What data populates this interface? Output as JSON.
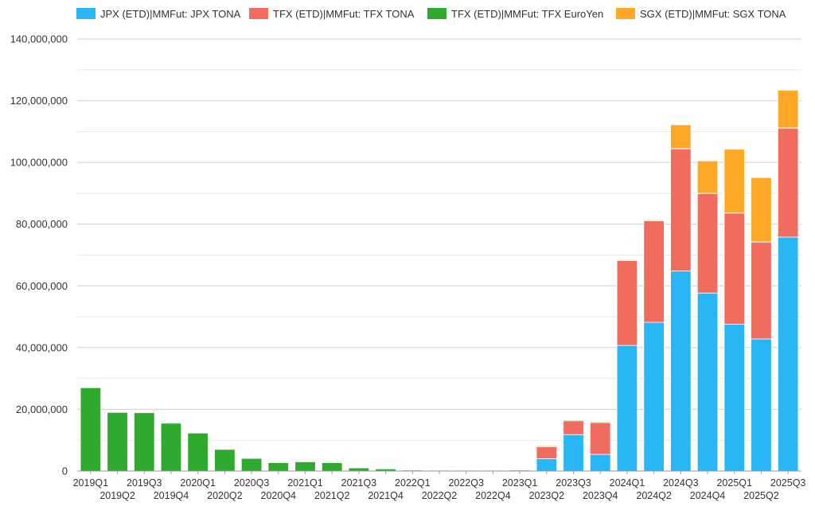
{
  "colors": {
    "jpx": "#29b6f6",
    "tfx_tona": "#ef6c5e",
    "tfx_euroyen": "#2eaa2e",
    "sgx": "#ffa726",
    "gridline": "#dddddd",
    "axis": "#999999"
  },
  "chart_data": {
    "type": "bar",
    "stacked": true,
    "legend_position": "top",
    "grid": true,
    "ylim": [
      0,
      140000000
    ],
    "y_ticks": [
      0,
      20000000,
      40000000,
      60000000,
      80000000,
      100000000,
      120000000,
      140000000
    ],
    "y_tick_labels": [
      "0",
      "20,000,000",
      "40,000,000",
      "60,000,000",
      "80,000,000",
      "100,000,000",
      "120,000,000",
      "140,000,000"
    ],
    "categories": [
      "2019Q1",
      "2019Q2",
      "2019Q3",
      "2019Q4",
      "2020Q1",
      "2020Q2",
      "2020Q3",
      "2020Q4",
      "2021Q1",
      "2021Q2",
      "2021Q3",
      "2021Q4",
      "2022Q1",
      "2022Q2",
      "2022Q3",
      "2022Q4",
      "2023Q1",
      "2023Q2",
      "2023Q3",
      "2023Q4",
      "2024Q1",
      "2024Q2",
      "2024Q3",
      "2024Q4",
      "2025Q1",
      "2025Q2",
      "2025Q3"
    ],
    "series": [
      {
        "name": "JPX (ETD)|MMFut: JPX TONA",
        "color_key": "jpx",
        "values": [
          0,
          0,
          0,
          0,
          0,
          0,
          0,
          0,
          0,
          0,
          0,
          0,
          0,
          0,
          0,
          0,
          0,
          4000000,
          11800000,
          5400000,
          40700000,
          48200000,
          64800000,
          57700000,
          47600000,
          42800000,
          75800000
        ]
      },
      {
        "name": "TFX (ETD)|MMFut: TFX TONA",
        "color_key": "tfx_tona",
        "values": [
          0,
          0,
          0,
          0,
          0,
          0,
          0,
          0,
          0,
          0,
          0,
          0,
          0,
          0,
          0,
          0,
          0,
          3900000,
          4500000,
          10300000,
          27500000,
          32900000,
          39600000,
          32200000,
          36000000,
          31400000,
          35300000
        ]
      },
      {
        "name": "TFX (ETD)|MMFut: TFX EuroYen",
        "color_key": "tfx_euroyen",
        "values": [
          27000000,
          19000000,
          18900000,
          15500000,
          12300000,
          7000000,
          4100000,
          2700000,
          3000000,
          2700000,
          1000000,
          700000,
          300000,
          100000,
          100000,
          100000,
          300000,
          50000,
          50000,
          50000,
          100000,
          100000,
          100000,
          100000,
          100000,
          100000,
          100000
        ]
      },
      {
        "name": "SGX (ETD)|MMFut: SGX TONA",
        "color_key": "sgx",
        "values": [
          0,
          0,
          0,
          0,
          0,
          0,
          0,
          0,
          0,
          0,
          0,
          0,
          0,
          0,
          0,
          0,
          0,
          0,
          0,
          0,
          0,
          0,
          7700000,
          10500000,
          20600000,
          20800000,
          12200000
        ]
      }
    ]
  }
}
